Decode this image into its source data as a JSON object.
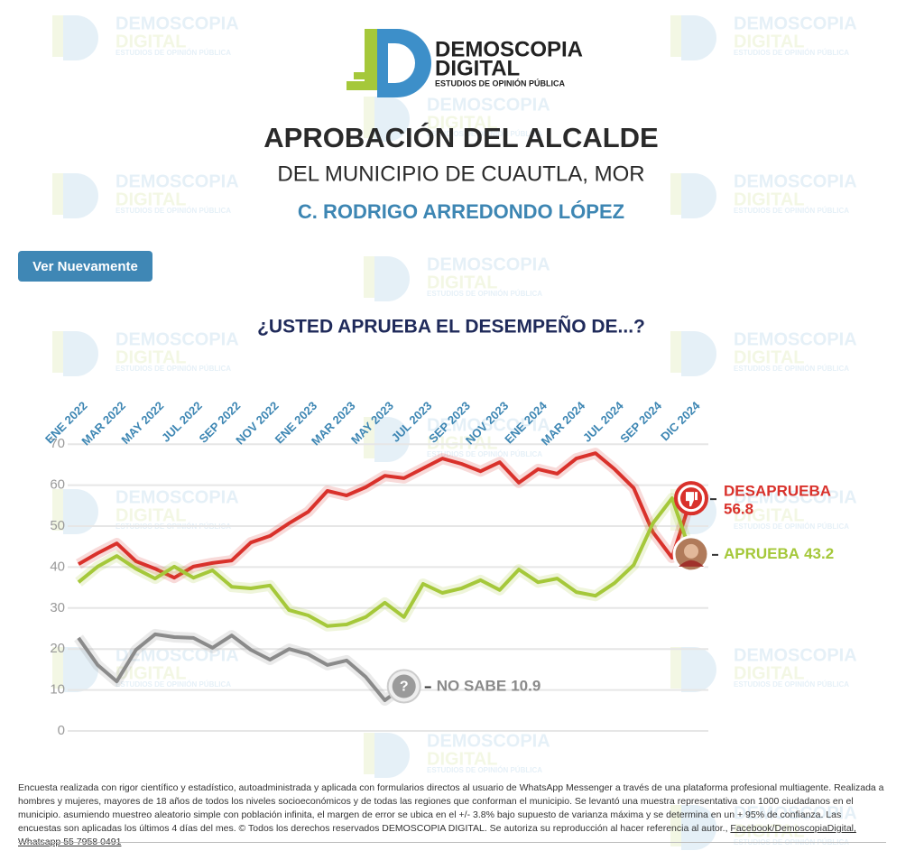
{
  "logo": {
    "name1": "DEMOSCOPIA",
    "name2": "DIGITAL",
    "tagline": "ESTUDIOS DE OPINIÓN PÚBLICA"
  },
  "button": "Ver Nuevamente",
  "chart_data": {
    "type": "line",
    "title": "APROBACIÓN DEL ALCALDE",
    "subtitle": "DEL MUNICIPIO DE CUAUTLA, MOR",
    "person": "C. RODRIGO ARREDONDO LÓPEZ",
    "question": "¿USTED APRUEBA EL DESEMPEÑO DE...?",
    "categories": [
      "ENE 2022",
      null,
      "MAR 2022",
      null,
      "MAY 2022",
      null,
      "JUL 2022",
      null,
      "SEP 2022",
      null,
      "NOV 2022",
      null,
      "ENE 2023",
      null,
      "MAR 2023",
      null,
      "MAY 2023",
      null,
      "JUL 2023",
      null,
      "SEP 2023",
      null,
      "NOV 2023",
      null,
      "ENE 2024",
      null,
      "MAR 2024",
      null,
      "JUL 2024",
      null,
      "SEP 2024",
      null,
      "DIC 2024"
    ],
    "ylim": [
      0,
      75
    ],
    "yticks": [
      0,
      10,
      20,
      30,
      40,
      50,
      60,
      70
    ],
    "grid": true,
    "series": [
      {
        "name": "DESAPRUEBA",
        "color": "#d9312b",
        "values": [
          40.7,
          43.4,
          45.8,
          41.4,
          39.6,
          37.4,
          40.1,
          41.0,
          41.6,
          46.0,
          47.6,
          50.7,
          53.5,
          58.6,
          57.5,
          59.5,
          62.3,
          61.7,
          64.1,
          66.5,
          65.2,
          63.4,
          65.6,
          60.6,
          63.9,
          62.8,
          66.5,
          67.8,
          63.9,
          59.3,
          48.5,
          42.3,
          56.8
        ]
      },
      {
        "name": "APRUEBA",
        "color": "#a5c83a",
        "values": [
          36.3,
          40.1,
          42.7,
          39.6,
          37.2,
          40.1,
          37.4,
          39.2,
          35.2,
          34.8,
          35.5,
          29.5,
          28.2,
          25.6,
          26.0,
          27.8,
          31.3,
          27.8,
          35.9,
          33.7,
          34.8,
          36.8,
          34.4,
          39.4,
          36.3,
          37.2,
          33.9,
          33.0,
          36.1,
          40.5,
          50.7,
          56.8,
          43.2
        ]
      },
      {
        "name": "NO SABE",
        "color": "#8a8a8a",
        "values": [
          22.7,
          16.1,
          12.1,
          19.8,
          23.6,
          22.9,
          22.7,
          20.3,
          23.3,
          19.8,
          17.4,
          20.0,
          18.7,
          16.1,
          17.2,
          13.2,
          7.5,
          10.9,
          null,
          null,
          null,
          null,
          null,
          null,
          null,
          null,
          null,
          null,
          null,
          null,
          null,
          null,
          null
        ]
      }
    ]
  },
  "footer": {
    "text": "Encuesta realizada con rigor científico y estadístico, autoadministrada y aplicada con formularios directos al usuario de WhatsApp Messenger a través de una plataforma profesional multiagente. Realizada a hombres y mujeres, mayores de 18 años de todos los niveles socioeconómicos y de todas las regiones que conforman el municipio. Se levantó una muestra representativa con 1000 ciudadanos en el municipio. asumiendo muestreo aleatorio simple con población infinita, el margen de error se ubica en el +/- 3.8% bajo supuesto de varianza máxima y se determina en un + 95% de confianza. Las encuestas son aplicadas los últimos 4 días del mes. © Todos los derechos reservados DEMOSCOPIA DIGITAL. Se autoriza su reproducción al hacer referencia al autor.,",
    "link1": "Facebook/DemoscopiaDigital,",
    "link2": "Whatsapp 55 7958 0491"
  }
}
